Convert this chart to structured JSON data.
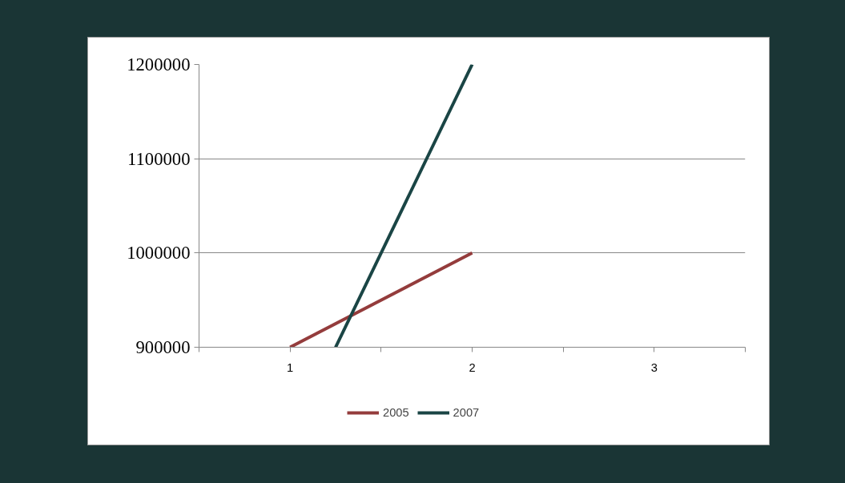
{
  "chart_data": {
    "type": "line",
    "xlim": [
      0.5,
      3.5
    ],
    "xticks": [
      {
        "value": 0.5,
        "label": null
      },
      1,
      {
        "value": 1.5,
        "label": null
      },
      2,
      {
        "value": 2.5,
        "label": null
      },
      3,
      {
        "value": 3.5,
        "label": null
      }
    ],
    "ylim": [
      900000,
      1200000
    ],
    "yticks": [
      900000,
      1000000,
      1100000,
      1200000
    ],
    "series": [
      {
        "name": "2005",
        "color": "#943c3c",
        "x": [
          1,
          2
        ],
        "values": [
          900000,
          1000000
        ]
      },
      {
        "name": "2007",
        "color": "#1a4545",
        "x": [
          1.25,
          2
        ],
        "values": [
          900000,
          1200000
        ]
      }
    ],
    "grid": "y",
    "legend": "bottom",
    "marker": "none",
    "line_style": "solid"
  }
}
